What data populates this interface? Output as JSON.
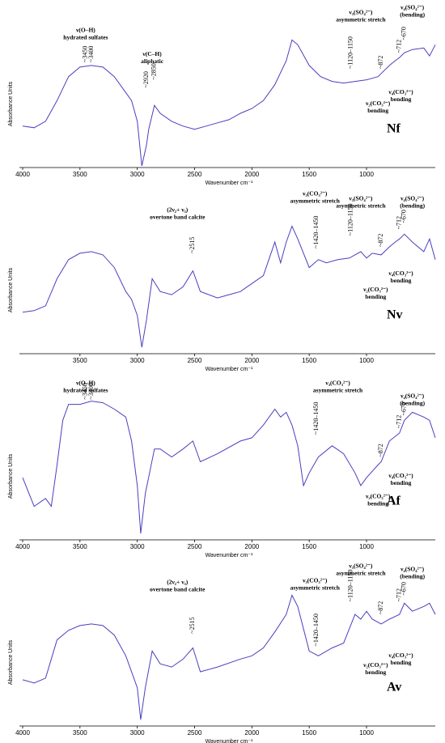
{
  "chart_data": [
    {
      "type": "line",
      "sample": "Nf",
      "xlabel": "Wavenumber cm⁻¹",
      "ylabel": "Absorbance Units",
      "color": "#4a3fbf",
      "xlim": [
        4000,
        400
      ],
      "ylim": [
        0,
        1
      ],
      "xticks": [
        4000,
        3500,
        3000,
        2500,
        2000,
        1500,
        1000
      ],
      "x": [
        4000,
        3900,
        3800,
        3700,
        3600,
        3500,
        3400,
        3300,
        3200,
        3100,
        3050,
        3000,
        2960,
        2920,
        2900,
        2850,
        2800,
        2700,
        2600,
        2500,
        2400,
        2300,
        2200,
        2100,
        2000,
        1900,
        1800,
        1700,
        1650,
        1600,
        1500,
        1400,
        1300,
        1200,
        1100,
        1000,
        950,
        900,
        872,
        800,
        750,
        712,
        670,
        600,
        500,
        450,
        400
      ],
      "values": [
        0.26,
        0.25,
        0.29,
        0.42,
        0.57,
        0.63,
        0.64,
        0.63,
        0.57,
        0.47,
        0.42,
        0.29,
        0.01,
        0.14,
        0.24,
        0.39,
        0.34,
        0.29,
        0.26,
        0.24,
        0.26,
        0.28,
        0.3,
        0.34,
        0.37,
        0.42,
        0.52,
        0.67,
        0.8,
        0.77,
        0.64,
        0.57,
        0.54,
        0.53,
        0.54,
        0.55,
        0.56,
        0.57,
        0.59,
        0.64,
        0.67,
        0.69,
        0.72,
        0.74,
        0.75,
        0.7,
        0.77
      ],
      "annotations": [
        {
          "lines": [
            "ν(O–H)",
            "hydrated sulfates"
          ],
          "x": 3450,
          "y": 0.86
        },
        {
          "lines": [
            "ν(C–H)",
            "aliphatic"
          ],
          "x": 2870,
          "y": 0.71
        },
        {
          "lines": [
            "ν₃(SO₄²⁻)",
            "asymmetric stretch"
          ],
          "x": 1050,
          "y": 0.97
        },
        {
          "lines": [
            "ν₄(SO₄²⁻)",
            "(bending)"
          ],
          "x": 600,
          "y": 1.0
        },
        {
          "lines": [
            "ν₂(CO₃²⁻)",
            "bending"
          ],
          "x": 900,
          "y": 0.4
        },
        {
          "lines": [
            "ν₄(CO₃²⁻)",
            "bending"
          ],
          "x": 700,
          "y": 0.47
        }
      ],
      "peak_labels": [
        {
          "value": 3400,
          "label": "~3400",
          "y": 0.66
        },
        {
          "value": 3450,
          "label": "~3450",
          "y": 0.66
        },
        {
          "value": 2920,
          "label": "~2920",
          "y": 0.5
        },
        {
          "value": 2850,
          "label": "~2850",
          "y": 0.55
        },
        {
          "value": [
            1120,
            1150
          ],
          "label": "~1120–1150",
          "y": 0.62
        },
        {
          "value": 872,
          "label": "~872",
          "y": 0.62
        },
        {
          "value": 712,
          "label": "~712",
          "y": 0.72
        },
        {
          "value": 670,
          "label": "~670",
          "y": 0.8
        }
      ]
    },
    {
      "type": "line",
      "sample": "Nv",
      "xlabel": "Wavenumber cm⁻¹",
      "ylabel": "Absorbance Units",
      "color": "#4a3fbf",
      "xlim": [
        4000,
        400
      ],
      "ylim": [
        0,
        1
      ],
      "xticks": [
        3500,
        3000,
        2500,
        2000,
        1500,
        1000
      ],
      "x": [
        4000,
        3900,
        3800,
        3700,
        3600,
        3500,
        3400,
        3300,
        3200,
        3100,
        3050,
        3000,
        2960,
        2920,
        2870,
        2800,
        2700,
        2600,
        2515,
        2450,
        2300,
        2200,
        2100,
        2000,
        1900,
        1800,
        1750,
        1700,
        1650,
        1600,
        1500,
        1420,
        1350,
        1250,
        1150,
        1050,
        1000,
        950,
        872,
        800,
        750,
        712,
        670,
        600,
        500,
        450,
        400
      ],
      "values": [
        0.26,
        0.27,
        0.3,
        0.47,
        0.59,
        0.63,
        0.64,
        0.62,
        0.54,
        0.39,
        0.34,
        0.24,
        0.04,
        0.21,
        0.47,
        0.39,
        0.37,
        0.42,
        0.52,
        0.39,
        0.35,
        0.37,
        0.39,
        0.44,
        0.49,
        0.7,
        0.57,
        0.7,
        0.8,
        0.72,
        0.54,
        0.59,
        0.57,
        0.59,
        0.6,
        0.64,
        0.6,
        0.63,
        0.62,
        0.67,
        0.7,
        0.72,
        0.75,
        0.7,
        0.64,
        0.72,
        0.59
      ],
      "annotations": [
        {
          "lines": [
            "(2ν₂+ ν₃)",
            "overtone band calcite"
          ],
          "x": 2650,
          "y": 0.9
        },
        {
          "lines": [
            "ν₃(CO₃²⁻)",
            "asymmetric stretch"
          ],
          "x": 1450,
          "y": 1.0
        },
        {
          "lines": [
            "ν₃(SO₄²⁻)",
            "asymmetric stretch"
          ],
          "x": 1050,
          "y": 0.97
        },
        {
          "lines": [
            "ν₄(SO₄²⁻)",
            "(bending)"
          ],
          "x": 600,
          "y": 0.97
        },
        {
          "lines": [
            "ν₂(CO₃²⁻)",
            "bending"
          ],
          "x": 920,
          "y": 0.4
        },
        {
          "lines": [
            "ν₄(CO₃²⁻)",
            "bending"
          ],
          "x": 700,
          "y": 0.5
        }
      ],
      "peak_labels": [
        {
          "value": 2515,
          "label": "~2515",
          "y": 0.63
        },
        {
          "value": [
            1420,
            1450
          ],
          "label": "~1420–1450",
          "y": 0.66
        },
        {
          "value": [
            1120,
            1150
          ],
          "label": "~1120–1150",
          "y": 0.74
        },
        {
          "value": 872,
          "label": "~872",
          "y": 0.67
        },
        {
          "value": 712,
          "label": "~712",
          "y": 0.78
        },
        {
          "value": 670,
          "label": "~670",
          "y": 0.82
        }
      ]
    },
    {
      "type": "line",
      "sample": "Af",
      "xlabel": "Wavenumber cm⁻¹",
      "ylabel": "Absorbance Units",
      "color": "#4a3fbf",
      "xlim": [
        4000,
        400
      ],
      "ylim": [
        0,
        1
      ],
      "xticks": [
        4000,
        3500,
        3000,
        2500,
        2000,
        1500,
        1000
      ],
      "x": [
        4000,
        3900,
        3800,
        3750,
        3700,
        3650,
        3600,
        3500,
        3400,
        3300,
        3200,
        3100,
        3050,
        3000,
        2970,
        2930,
        2850,
        2800,
        2700,
        2600,
        2515,
        2450,
        2300,
        2100,
        2000,
        1900,
        1800,
        1750,
        1700,
        1650,
        1600,
        1550,
        1500,
        1420,
        1300,
        1200,
        1100,
        1050,
        1000,
        900,
        872,
        800,
        712,
        670,
        600,
        500,
        450,
        400
      ],
      "values": [
        0.39,
        0.21,
        0.26,
        0.21,
        0.47,
        0.75,
        0.85,
        0.85,
        0.87,
        0.86,
        0.82,
        0.77,
        0.62,
        0.34,
        0.04,
        0.29,
        0.57,
        0.57,
        0.52,
        0.57,
        0.62,
        0.49,
        0.54,
        0.62,
        0.64,
        0.72,
        0.82,
        0.77,
        0.8,
        0.72,
        0.59,
        0.34,
        0.42,
        0.52,
        0.59,
        0.54,
        0.42,
        0.34,
        0.39,
        0.47,
        0.49,
        0.62,
        0.67,
        0.75,
        0.8,
        0.77,
        0.75,
        0.64
      ],
      "annotations": [
        {
          "lines": [
            "ν(O–H)",
            "hydrated sulfates"
          ],
          "x": 3450,
          "y": 0.98
        },
        {
          "lines": [
            "ν₃(CO₃²⁻)",
            "asymmetric stretch"
          ],
          "x": 1250,
          "y": 0.98
        },
        {
          "lines": [
            "ν₄(SO₄²⁻)",
            "(bending)"
          ],
          "x": 600,
          "y": 0.9
        },
        {
          "lines": [
            "ν₂(CO₃²⁻)",
            "bending"
          ],
          "x": 900,
          "y": 0.27
        },
        {
          "lines": [
            "ν₄(CO₃²⁻)",
            "bending"
          ],
          "x": 700,
          "y": 0.4
        }
      ],
      "peak_labels": [
        {
          "value": 3400,
          "label": "~3400",
          "y": 0.88
        },
        {
          "value": 3450,
          "label": "~3450",
          "y": 0.88
        },
        {
          "value": [
            1420,
            1450
          ],
          "label": "~1420–1450",
          "y": 0.66
        },
        {
          "value": 872,
          "label": "~872",
          "y": 0.52
        },
        {
          "value": 712,
          "label": "~712",
          "y": 0.7
        },
        {
          "value": 670,
          "label": "~670",
          "y": 0.78
        }
      ]
    },
    {
      "type": "line",
      "sample": "Av",
      "xlabel": "Wavenumber cm⁻¹",
      "ylabel": "Absorbance Units",
      "color": "#4a3fbf",
      "xlim": [
        4000,
        400
      ],
      "ylim": [
        0,
        1
      ],
      "xticks": [
        4000,
        3500,
        3000,
        2500,
        2000,
        1500,
        1000
      ],
      "x": [
        4000,
        3900,
        3800,
        3700,
        3600,
        3500,
        3400,
        3300,
        3200,
        3100,
        3000,
        2970,
        2930,
        2870,
        2800,
        2700,
        2600,
        2515,
        2450,
        2300,
        2100,
        2000,
        1900,
        1800,
        1700,
        1650,
        1600,
        1500,
        1420,
        1300,
        1200,
        1100,
        1050,
        1000,
        950,
        872,
        800,
        712,
        670,
        600,
        500,
        450,
        400
      ],
      "values": [
        0.29,
        0.27,
        0.3,
        0.54,
        0.6,
        0.63,
        0.64,
        0.63,
        0.57,
        0.44,
        0.24,
        0.04,
        0.24,
        0.47,
        0.39,
        0.37,
        0.42,
        0.49,
        0.34,
        0.37,
        0.42,
        0.44,
        0.49,
        0.59,
        0.7,
        0.82,
        0.75,
        0.47,
        0.44,
        0.49,
        0.52,
        0.7,
        0.67,
        0.72,
        0.67,
        0.64,
        0.67,
        0.7,
        0.77,
        0.72,
        0.75,
        0.77,
        0.7
      ],
      "annotations": [
        {
          "lines": [
            "(2ν₂+ ν₃)",
            "overtone band calcite"
          ],
          "x": 2650,
          "y": 0.9
        },
        {
          "lines": [
            "ν₃(CO₃²⁻)",
            "asymmetric stretch"
          ],
          "x": 1450,
          "y": 0.91
        },
        {
          "lines": [
            "ν₃(SO₄²⁻)",
            "asymmetric stretch"
          ],
          "x": 1050,
          "y": 1.0
        },
        {
          "lines": [
            "ν₄(SO₄²⁻)",
            "(bending)"
          ],
          "x": 600,
          "y": 0.98
        },
        {
          "lines": [
            "ν₂(CO₃²⁻)",
            "bending"
          ],
          "x": 920,
          "y": 0.38
        },
        {
          "lines": [
            "ν₄(CO₃²⁻)",
            "bending"
          ],
          "x": 700,
          "y": 0.44
        }
      ],
      "peak_labels": [
        {
          "value": 2515,
          "label": "~2515",
          "y": 0.58
        },
        {
          "value": [
            1420,
            1450
          ],
          "label": "~1420–1450",
          "y": 0.5
        },
        {
          "value": [
            1120,
            1150
          ],
          "label": "~1120–1150",
          "y": 0.78
        },
        {
          "value": 872,
          "label": "~872",
          "y": 0.7
        },
        {
          "value": 712,
          "label": "~712",
          "y": 0.78
        },
        {
          "value": 670,
          "label": "~670",
          "y": 0.82
        }
      ]
    }
  ]
}
